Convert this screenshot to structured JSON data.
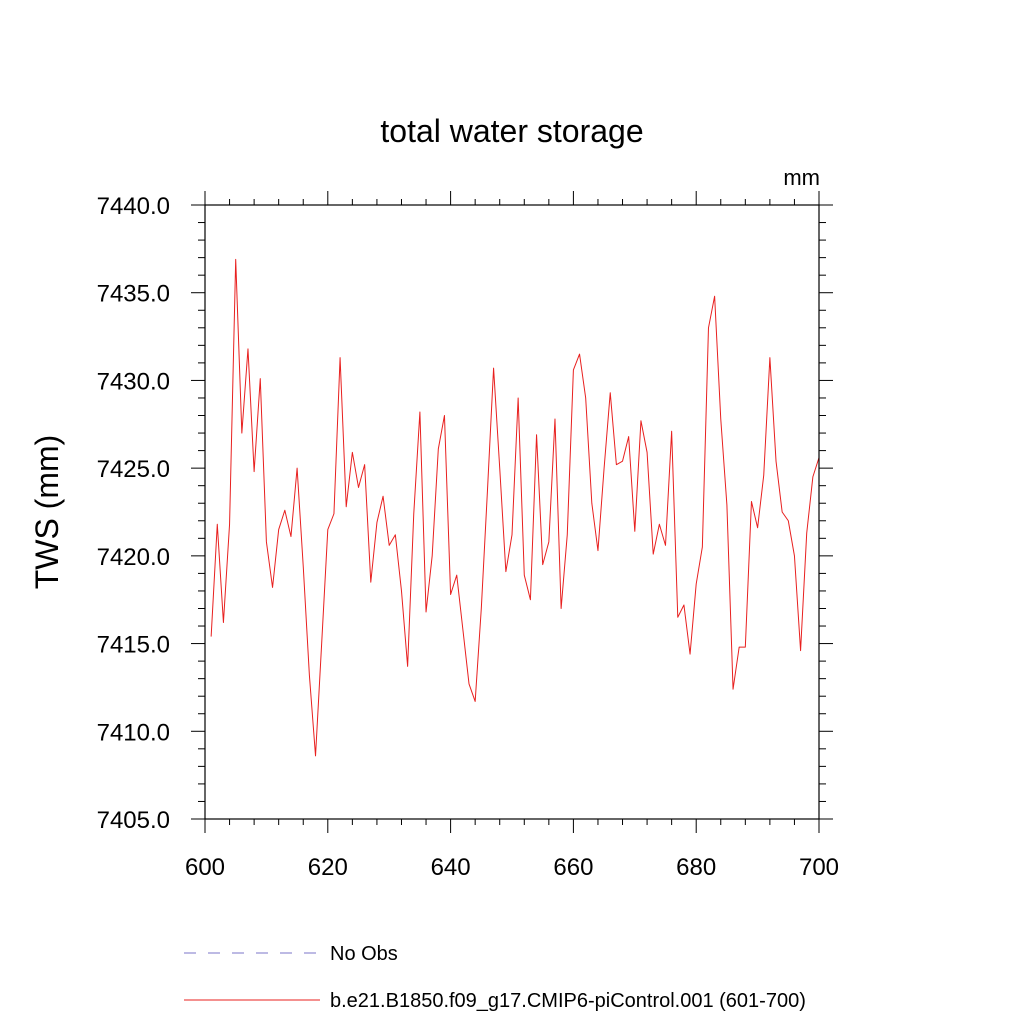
{
  "chart_data": {
    "type": "line",
    "title": "total water storage",
    "units": "mm",
    "xlabel": "",
    "ylabel": "TWS  (mm)",
    "xlim": [
      600,
      700
    ],
    "ylim": [
      7405.0,
      7440.0
    ],
    "x_ticks": [
      600,
      620,
      640,
      660,
      680,
      700
    ],
    "x_tick_labels": [
      "600",
      "620",
      "640",
      "660",
      "680",
      "700"
    ],
    "y_ticks": [
      7405.0,
      7410.0,
      7415.0,
      7420.0,
      7425.0,
      7430.0,
      7435.0,
      7440.0
    ],
    "y_tick_labels": [
      "7405.0",
      "7410.0",
      "7415.0",
      "7420.0",
      "7425.0",
      "7430.0",
      "7435.0",
      "7440.0"
    ],
    "grid": false,
    "legend_position": "bottom",
    "series": [
      {
        "name": "b.e21.B1850.f09_g17.CMIP6-piControl.001 (601-700)",
        "color": "#e8201f",
        "style": "solid",
        "x": [
          601,
          602,
          603,
          604,
          605,
          606,
          607,
          608,
          609,
          610,
          611,
          612,
          613,
          614,
          615,
          616,
          617,
          618,
          619,
          620,
          621,
          622,
          623,
          624,
          625,
          626,
          627,
          628,
          629,
          630,
          631,
          632,
          633,
          634,
          635,
          636,
          637,
          638,
          639,
          640,
          641,
          642,
          643,
          644,
          645,
          646,
          647,
          648,
          649,
          650,
          651,
          652,
          653,
          654,
          655,
          656,
          657,
          658,
          659,
          660,
          661,
          662,
          663,
          664,
          665,
          666,
          667,
          668,
          669,
          670,
          671,
          672,
          673,
          674,
          675,
          676,
          677,
          678,
          679,
          680,
          681,
          682,
          683,
          684,
          685,
          686,
          687,
          688,
          689,
          690,
          691,
          692,
          693,
          694,
          695,
          696,
          697,
          698,
          699,
          700
        ],
        "values": [
          7415.4,
          7421.8,
          7416.2,
          7421.8,
          7436.9,
          7427.0,
          7431.8,
          7424.8,
          7430.1,
          7420.8,
          7418.2,
          7421.5,
          7422.6,
          7421.1,
          7425.0,
          7419.4,
          7413.2,
          7408.6,
          7415.0,
          7421.5,
          7422.4,
          7431.3,
          7422.8,
          7425.9,
          7423.9,
          7425.2,
          7418.5,
          7421.9,
          7423.4,
          7420.6,
          7421.2,
          7418.0,
          7413.7,
          7422.4,
          7428.2,
          7416.8,
          7420.0,
          7426.1,
          7428.0,
          7417.8,
          7418.9,
          7415.8,
          7412.7,
          7411.7,
          7417.0,
          7423.7,
          7430.7,
          7425.0,
          7419.1,
          7421.2,
          7429.0,
          7418.9,
          7417.5,
          7426.9,
          7419.5,
          7420.8,
          7427.8,
          7417.0,
          7421.2,
          7430.6,
          7431.5,
          7429.0,
          7423.0,
          7420.3,
          7425.0,
          7429.3,
          7425.2,
          7425.4,
          7426.8,
          7421.4,
          7427.7,
          7425.9,
          7420.1,
          7421.8,
          7420.6,
          7427.1,
          7416.5,
          7417.2,
          7414.4,
          7418.4,
          7420.5,
          7433.0,
          7434.8,
          7427.8,
          7422.9,
          7412.4,
          7414.8,
          7414.8,
          7423.1,
          7421.6,
          7424.6,
          7431.3,
          7425.4,
          7422.5,
          7422.0,
          7420.0,
          7414.6,
          7421.3,
          7424.5,
          7425.6
        ]
      },
      {
        "name": "No Obs",
        "color": "#7b74c9",
        "style": "dashed",
        "x": [],
        "values": []
      }
    ]
  }
}
